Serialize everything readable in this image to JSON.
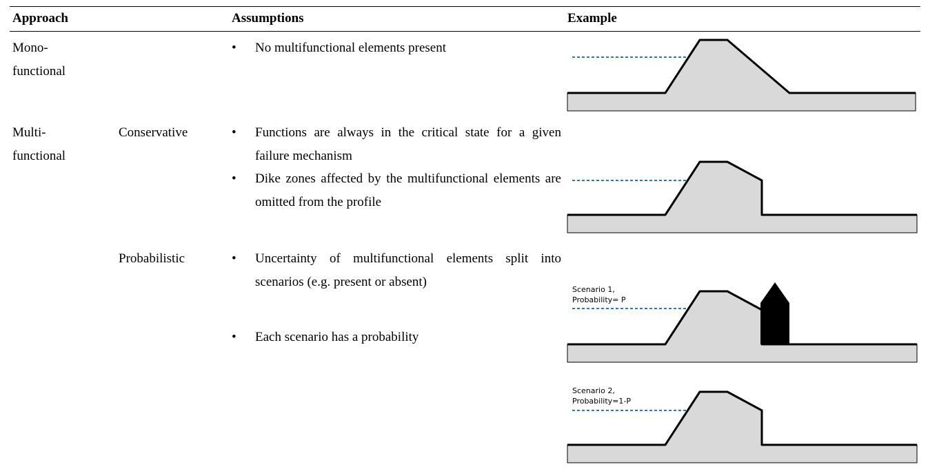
{
  "table": {
    "header": [
      "Approach",
      "Assumptions",
      "Example"
    ],
    "rows": [
      {
        "approach": "Mono-functional",
        "assumptions": [
          "No multifunctional elements  present"
        ]
      },
      {
        "approach": "Multi-functional",
        "method": "Conservative",
        "assumptions": [
          "Functions are always in the critical state for a given failure mechanism",
          "Dike zones affected by the multifunctional elements are omitted from the profile"
        ]
      },
      {
        "method": "Probabilistic",
        "assumptions": [
          "Uncertainty of multifunctional elements split into scenarios (e.g. present or absent)",
          "Each scenario has a probability"
        ],
        "scenarios": [
          [
            "Scenario 1,",
            "Probability= P"
          ],
          [
            "Scenario 2,",
            "Probability=1-P"
          ]
        ]
      }
    ]
  }
}
